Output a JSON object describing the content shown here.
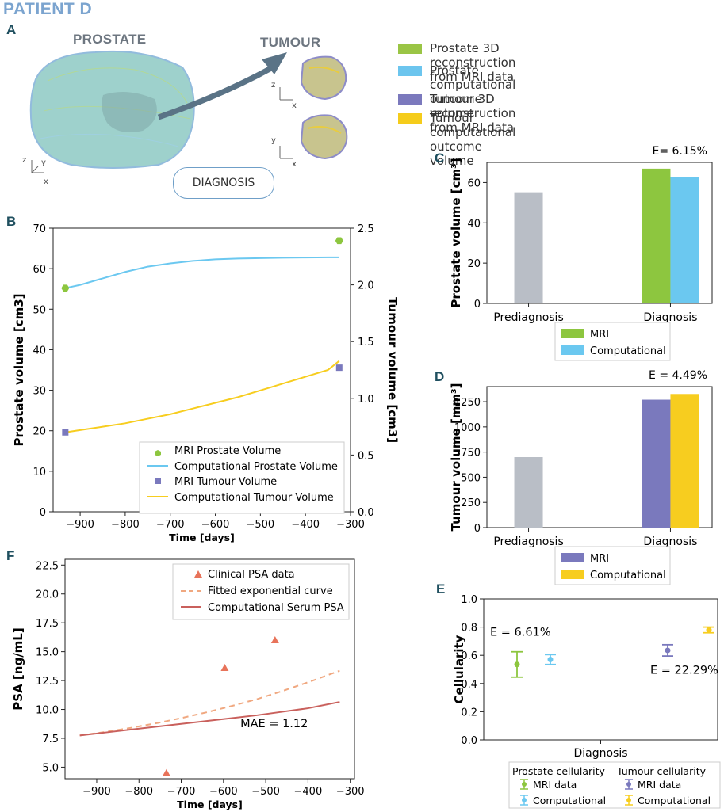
{
  "title": "PATIENT D",
  "panels": {
    "A": "A",
    "B": "B",
    "C": "C",
    "D": "D",
    "E": "E",
    "F": "F"
  },
  "panel_a": {
    "prostate_label": "PROSTATE",
    "tumour_label": "TUMOUR",
    "diagnosis_box": "DIAGNOSIS",
    "axes": {
      "x": "x",
      "y": "y",
      "z": "z"
    },
    "legend": [
      {
        "label": "Prostate 3D reconstruction from MRI data",
        "color": "#9ac545"
      },
      {
        "label": "Prostate computational outcome volume",
        "color": "#6cc5ee"
      },
      {
        "label": "Tumour 3D reconstruction from MRI data",
        "color": "#7b79bd"
      },
      {
        "label": "Tumour computational outcome volume",
        "color": "#f5cc1b"
      }
    ]
  },
  "colors": {
    "green": "#8dc63f",
    "blue": "#6bc8f0",
    "purple": "#7a79bd",
    "yellow": "#f7cd1f",
    "grey": "#b9bec6",
    "psa_tri": "#e8735a",
    "psa_dash": "#f0a880",
    "psa_line": "#c9605c"
  },
  "chart_data": [
    {
      "id": "B",
      "type": "line",
      "xlabel": "Time [days]",
      "ylabel": "Prostate volume [cm3]",
      "y2label": "Tumour volume [cm3]",
      "xlim": [
        -960,
        -300
      ],
      "ylim": [
        0,
        70
      ],
      "y2lim": [
        0,
        2.5
      ],
      "xticks": [
        "−900",
        "−800",
        "−700",
        "−600",
        "−500",
        "−400",
        "−300"
      ],
      "xtick_values": [
        -900,
        -800,
        -700,
        -600,
        -500,
        -400,
        -300
      ],
      "yticks": [
        "0",
        "10",
        "20",
        "30",
        "40",
        "50",
        "60",
        "70"
      ],
      "ytick_values": [
        0,
        10,
        20,
        30,
        40,
        50,
        60,
        70
      ],
      "y2ticks": [
        "0.0",
        "0.5",
        "1.0",
        "1.5",
        "2.0",
        "2.5"
      ],
      "y2tick_values": [
        0,
        0.5,
        1.0,
        1.5,
        2.0,
        2.5
      ],
      "series": [
        {
          "name": "MRI Prostate Volume",
          "kind": "marker-hex",
          "axis": "left",
          "x": [
            -933,
            -325
          ],
          "y": [
            55.2,
            66.9
          ]
        },
        {
          "name": "Computational Prostate Volume",
          "kind": "line",
          "axis": "left",
          "x": [
            -933,
            -900,
            -850,
            -800,
            -750,
            -700,
            -650,
            -600,
            -550,
            -500,
            -450,
            -400,
            -350,
            -325
          ],
          "y": [
            55.2,
            56.0,
            57.6,
            59.2,
            60.5,
            61.3,
            61.9,
            62.3,
            62.5,
            62.6,
            62.7,
            62.75,
            62.8,
            62.8
          ]
        },
        {
          "name": "MRI Tumour Volume",
          "kind": "marker-square",
          "axis": "right",
          "x": [
            -933,
            -325
          ],
          "y": [
            0.7,
            1.27
          ]
        },
        {
          "name": "Computational Tumour Volume",
          "kind": "line",
          "axis": "right",
          "x": [
            -933,
            -900,
            -850,
            -800,
            -750,
            -700,
            -650,
            -600,
            -550,
            -500,
            -450,
            -400,
            -350,
            -325
          ],
          "y": [
            0.7,
            0.72,
            0.75,
            0.78,
            0.82,
            0.86,
            0.91,
            0.96,
            1.01,
            1.07,
            1.13,
            1.19,
            1.25,
            1.33
          ]
        }
      ]
    },
    {
      "id": "C",
      "type": "bar",
      "ylabel": "Prostate volume [cm³]",
      "annotation": "E= 6.15%",
      "categories": [
        "Prediagnosis",
        "Diagnosis"
      ],
      "ylim": [
        0,
        70
      ],
      "yticks": [
        "0",
        "20",
        "40",
        "60"
      ],
      "ytick_values": [
        0,
        20,
        40,
        60
      ],
      "series": [
        {
          "name": "Prediagnosis",
          "values": [
            55.2,
            null
          ]
        },
        {
          "name": "MRI",
          "values": [
            null,
            66.9
          ]
        },
        {
          "name": "Computational",
          "values": [
            null,
            62.8
          ]
        }
      ],
      "legend": [
        "MRI",
        "Computational"
      ]
    },
    {
      "id": "D",
      "type": "bar",
      "ylabel": "Tumour volume [mm³]",
      "annotation": "E = 4.49%",
      "categories": [
        "Prediagnosis",
        "Diagnosis"
      ],
      "ylim": [
        0,
        1400
      ],
      "yticks": [
        "0",
        "250",
        "500",
        "750",
        "1000",
        "1250"
      ],
      "ytick_values": [
        0,
        250,
        500,
        750,
        1000,
        1250
      ],
      "series": [
        {
          "name": "Prediagnosis",
          "values": [
            700,
            null
          ]
        },
        {
          "name": "MRI",
          "values": [
            null,
            1270
          ]
        },
        {
          "name": "Computational",
          "values": [
            null,
            1327
          ]
        }
      ],
      "legend": [
        "MRI",
        "Computational"
      ]
    },
    {
      "id": "E",
      "type": "scatter",
      "ylabel": "Cellularity",
      "xlabel": "Diagnosis",
      "ylim": [
        0,
        1.0
      ],
      "yticks": [
        "0.0",
        "0.2",
        "0.4",
        "0.6",
        "0.8",
        "1.0"
      ],
      "ytick_values": [
        0,
        0.2,
        0.4,
        0.6,
        0.8,
        1.0
      ],
      "annotations": [
        "E = 6.61%",
        "E = 22.29%"
      ],
      "points": [
        {
          "name": "Prostate MRI data",
          "pos": 0,
          "y": 0.535,
          "lo": 0.445,
          "hi": 0.625
        },
        {
          "name": "Prostate Computational",
          "pos": 1,
          "y": 0.57,
          "lo": 0.535,
          "hi": 0.605
        },
        {
          "name": "Tumour MRI data",
          "pos": 2,
          "y": 0.635,
          "lo": 0.595,
          "hi": 0.675
        },
        {
          "name": "Tumour Computational",
          "pos": 3,
          "y": 0.78,
          "lo": 0.76,
          "hi": 0.8
        }
      ],
      "legend": {
        "prostate_title": "Prostate cellularity",
        "tumour_title": "Tumour cellularity",
        "mri": "MRI data",
        "comp": "Computational"
      }
    },
    {
      "id": "F",
      "type": "line",
      "xlabel": "Time [days]",
      "ylabel": "PSA [ng/mL]",
      "annotation": "MAE = 1.12",
      "xlim": [
        -975,
        -290
      ],
      "ylim": [
        4.0,
        23.0
      ],
      "xticks": [
        "−900",
        "−800",
        "−700",
        "−600",
        "−500",
        "−400",
        "−300"
      ],
      "xtick_values": [
        -900,
        -800,
        -700,
        -600,
        -500,
        -400,
        -300
      ],
      "yticks": [
        "5.0",
        "7.5",
        "10.0",
        "12.5",
        "15.0",
        "17.5",
        "20.0",
        "22.5"
      ],
      "ytick_values": [
        5.0,
        7.5,
        10.0,
        12.5,
        15.0,
        17.5,
        20.0,
        22.5
      ],
      "series": [
        {
          "name": "Clinical PSA data",
          "kind": "triangle",
          "x": [
            -735,
            -597,
            -478
          ],
          "y": [
            4.5,
            13.6,
            16.0
          ]
        },
        {
          "name": "Fitted exponential curve",
          "kind": "dashed",
          "x": [
            -940,
            -880,
            -820,
            -760,
            -700,
            -640,
            -580,
            -520,
            -460,
            -400,
            -325
          ],
          "y": [
            7.75,
            8.05,
            8.4,
            8.8,
            9.25,
            9.75,
            10.3,
            10.9,
            11.6,
            12.35,
            13.35
          ]
        },
        {
          "name": "Computational Serum PSA",
          "kind": "line",
          "x": [
            -940,
            -880,
            -820,
            -760,
            -700,
            -640,
            -580,
            -520,
            -460,
            -400,
            -325
          ],
          "y": [
            7.75,
            8.0,
            8.25,
            8.5,
            8.75,
            9.0,
            9.25,
            9.5,
            9.8,
            10.1,
            10.65
          ]
        }
      ]
    }
  ]
}
